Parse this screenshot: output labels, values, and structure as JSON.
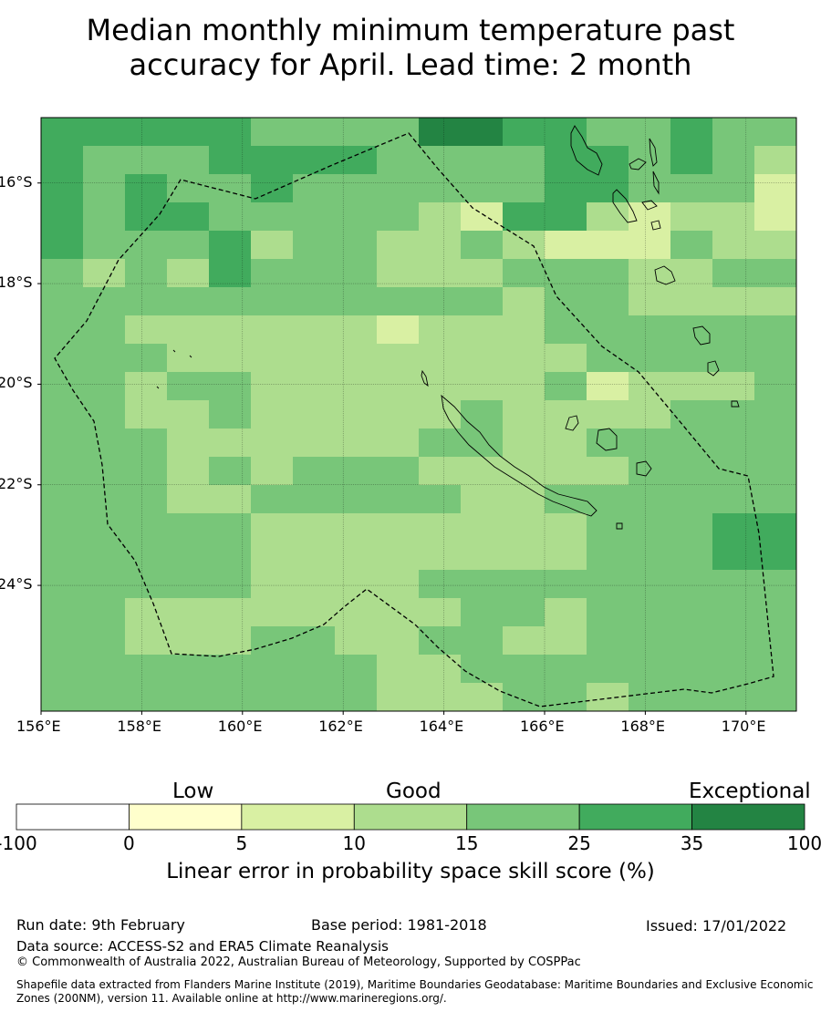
{
  "title_line1": "Median monthly minimum temperature past",
  "title_line2": "accuracy for April. Lead time: 2 month",
  "map": {
    "lon_range": [
      156.0,
      171.0
    ],
    "lat_range": [
      -26.5,
      -14.7
    ],
    "x_ticks": [
      {
        "lon": 156,
        "label": "156°E"
      },
      {
        "lon": 158,
        "label": "158°E"
      },
      {
        "lon": 160,
        "label": "160°E"
      },
      {
        "lon": 162,
        "label": "162°E"
      },
      {
        "lon": 164,
        "label": "164°E"
      },
      {
        "lon": 166,
        "label": "166°E"
      },
      {
        "lon": 168,
        "label": "168°E"
      },
      {
        "lon": 170,
        "label": "170°E"
      }
    ],
    "y_ticks": [
      {
        "lat": -16,
        "label": "16°S"
      },
      {
        "lat": -18,
        "label": "18°S"
      },
      {
        "lat": -20,
        "label": "20°S"
      },
      {
        "lat": -22,
        "label": "22°S"
      },
      {
        "lat": -24,
        "label": "24°S"
      }
    ],
    "grid": "dotted"
  },
  "colorbar": {
    "categories": {
      "low": "Low",
      "good": "Good",
      "exceptional": "Exceptional"
    },
    "bins": [
      {
        "from": "-100",
        "to": "0",
        "color": "#ffffff"
      },
      {
        "from": "0",
        "to": "5",
        "color": "#ffffcc"
      },
      {
        "from": "5",
        "to": "10",
        "color": "#d9f0a3"
      },
      {
        "from": "10",
        "to": "15",
        "color": "#addd8e"
      },
      {
        "from": "15",
        "to": "25",
        "color": "#78c679"
      },
      {
        "from": "25",
        "to": "35",
        "color": "#41ab5d"
      },
      {
        "from": "35",
        "to": "100",
        "color": "#238443"
      }
    ],
    "tick_labels": [
      "-100",
      "0",
      "5",
      "10",
      "15",
      "25",
      "35",
      "100"
    ],
    "label": "Linear error in probability space skill score (%)"
  },
  "footer": {
    "run_date": "Run date: 9th February",
    "base_period": "Base period: 1981-2018",
    "issued": "Issued: 17/01/2022",
    "data_source": "Data source: ACCESS-S2 and ERA5 Climate Reanalysis",
    "copyright": "© Commonwealth of Australia 2022, Australian Bureau of Meteorology, Supported by COSPPac",
    "shapefile": "Shapefile data extracted from Flanders Marine Institute (2019), Maritime Boundaries Geodatabase: Maritime Boundaries and Exclusive Economic Zones (200NM), version 11. Available online at http://www.marineregions.org/."
  }
}
